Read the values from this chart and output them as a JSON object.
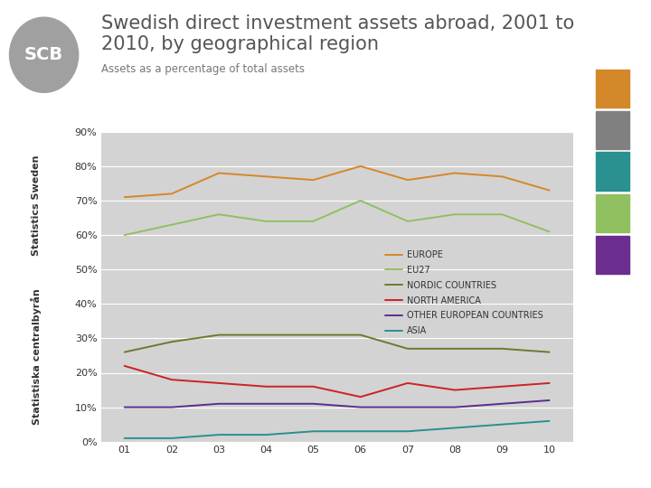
{
  "title_line1": "Swedish direct investment assets abroad, 2001 to",
  "title_line2": "2010, by geographical region",
  "subtitle": "Assets as a percentage of total assets",
  "years": [
    1,
    2,
    3,
    4,
    5,
    6,
    7,
    8,
    9,
    10
  ],
  "year_labels": [
    "01",
    "02",
    "03",
    "04",
    "05",
    "06",
    "07",
    "08",
    "09",
    "10"
  ],
  "series": {
    "EUROPE": {
      "color": "#D4882A",
      "data": [
        71,
        72,
        78,
        77,
        76,
        80,
        76,
        78,
        77,
        73
      ]
    },
    "EU27": {
      "color": "#90C060",
      "data": [
        60,
        63,
        66,
        64,
        64,
        70,
        64,
        66,
        66,
        61
      ]
    },
    "NORDIC COUNTRIES": {
      "color": "#6B7A30",
      "data": [
        26,
        29,
        31,
        31,
        31,
        31,
        27,
        27,
        27,
        26
      ]
    },
    "NORTH AMERICA": {
      "color": "#CC2222",
      "data": [
        22,
        18,
        17,
        16,
        16,
        13,
        17,
        15,
        16,
        17
      ]
    },
    "OTHER EUROPEAN COUNTRIES": {
      "color": "#5B2D8E",
      "data": [
        10,
        10,
        11,
        11,
        11,
        10,
        10,
        10,
        11,
        12
      ]
    },
    "ASIA": {
      "color": "#2A9090",
      "data": [
        1,
        1,
        2,
        2,
        3,
        3,
        3,
        4,
        5,
        6
      ]
    }
  },
  "ylim": [
    0,
    90
  ],
  "yticks": [
    0,
    10,
    20,
    30,
    40,
    50,
    60,
    70,
    80,
    90
  ],
  "ytick_labels": [
    "0%",
    "10%",
    "20%",
    "30%",
    "40%",
    "50%",
    "60%",
    "70%",
    "80%",
    "90%"
  ],
  "plot_area_color": "#D3D3D3",
  "fig_background": "#FFFFFF",
  "title_color": "#555555",
  "subtitle_color": "#777777",
  "title_fontsize": 15,
  "subtitle_fontsize": 8.5,
  "legend_fontsize": 7,
  "axis_label_fontsize": 8,
  "sidebar_text_color": "#333333",
  "right_blocks": [
    "#D4882A",
    "#808080",
    "#2A9090",
    "#90C060",
    "#6B2D8E"
  ],
  "logo_bg": "#A0A0A0",
  "logo_text_color": "#FFFFFF"
}
